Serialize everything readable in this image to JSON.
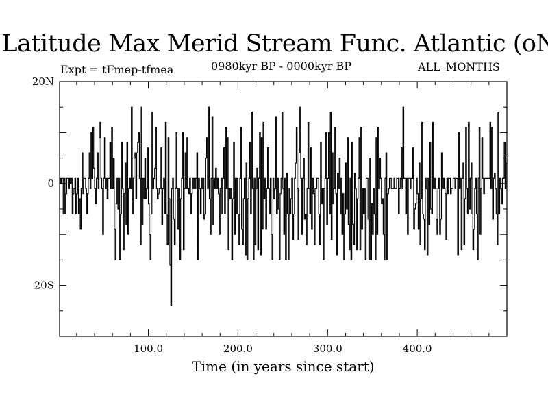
{
  "chart_data": {
    "type": "line",
    "title": "Latitude Max Merid Stream Func. Atlantic (oN)",
    "subtitle_left": "Expt = tFmep-tfmea",
    "subtitle_center": "0980kyr BP - 0000kyr BP",
    "subtitle_right": "ALL_MONTHS",
    "xlabel": "Time (in years since start)",
    "ylabel": "",
    "xlim": [
      1,
      500
    ],
    "ylim": [
      -30,
      20
    ],
    "x_ticks": [
      {
        "value": 100,
        "label": "100.0"
      },
      {
        "value": 200,
        "label": "200.0"
      },
      {
        "value": 300,
        "label": "300.0"
      },
      {
        "value": 400,
        "label": "400.0"
      }
    ],
    "y_ticks": [
      {
        "value": 20,
        "label": "20N"
      },
      {
        "value": 0,
        "label": "0"
      },
      {
        "value": -20,
        "label": "20S"
      }
    ],
    "series": [
      {
        "values": [
          1,
          0,
          1,
          1,
          -6,
          1,
          -6,
          -2,
          1,
          1,
          -1,
          1,
          0,
          1,
          -6,
          -2,
          -1,
          1,
          -6,
          -2,
          1,
          -6,
          -3,
          -9,
          -1,
          6,
          -2,
          1,
          1,
          -1,
          -6,
          -2,
          1,
          6,
          -1,
          10,
          1,
          11,
          3,
          -1,
          -4,
          1,
          6,
          -1,
          9,
          12,
          1,
          -1,
          -10,
          1,
          9,
          -1,
          1,
          -3,
          1,
          1,
          8,
          -1,
          11,
          -1,
          5,
          -9,
          -15,
          -4,
          1,
          -5,
          1,
          -15,
          -6,
          8,
          -1,
          -13,
          -2,
          4,
          -8,
          8,
          -10,
          -1,
          1,
          -1,
          15,
          -6,
          1,
          5,
          6,
          -3,
          6,
          8,
          10,
          1,
          -12,
          15,
          -8,
          1,
          -3,
          5,
          -3,
          -1,
          7,
          -4,
          -10,
          -15,
          -6,
          14,
          -1,
          1,
          3,
          11,
          -1,
          -3,
          -2,
          -1,
          -1,
          7,
          -8,
          -1,
          1,
          -6,
          12,
          -6,
          -12,
          9,
          -3,
          -16,
          -24,
          -1,
          1,
          -7,
          -12,
          -1,
          10,
          -1,
          -9,
          -1,
          -15,
          -3,
          1,
          10,
          -13,
          -1,
          6,
          -1,
          9,
          -1,
          -2,
          1,
          -6,
          -2,
          1,
          -1,
          1,
          -1,
          1,
          6,
          -15,
          1,
          -1,
          -6,
          1,
          -1,
          1,
          -7,
          -6,
          5,
          9,
          -1,
          15,
          -3,
          -10,
          1,
          13,
          -8,
          1,
          -1,
          3,
          -1,
          1,
          -2,
          -10,
          -1,
          1,
          -6,
          1,
          7,
          -6,
          11,
          -1,
          9,
          -13,
          -1,
          -3,
          -1,
          -15,
          -3,
          8,
          -10,
          1,
          -6,
          1,
          -6,
          -12,
          1,
          11,
          -9,
          -12,
          -3,
          1,
          -14,
          4,
          -15,
          -3,
          1,
          8,
          -6,
          14,
          -1,
          -15,
          1,
          -12,
          -1,
          3,
          -13,
          1,
          10,
          -14,
          9,
          -9,
          12,
          -3,
          1,
          -9,
          -1,
          7,
          -1,
          -6,
          1,
          -10,
          -15,
          1,
          -3,
          -1,
          13,
          -6,
          1,
          -5,
          -15,
          -2,
          1,
          14,
          -1,
          -10,
          1,
          -15,
          2,
          -6,
          -15,
          -1,
          -6,
          -3,
          1,
          -11,
          -6,
          1,
          4,
          11,
          -1,
          -11,
          6,
          15,
          1,
          -10,
          1,
          5,
          -7,
          -6,
          -12,
          -1,
          12,
          -1,
          -6,
          7,
          -9,
          1,
          -2,
          -12,
          -1,
          -1,
          1,
          1,
          -6,
          -12,
          8,
          -4,
          -1,
          -15,
          -1,
          1,
          10,
          -8,
          1,
          10,
          -6,
          14,
          -11,
          6,
          -4,
          -1,
          11,
          -2,
          -14,
          2,
          -1,
          5,
          -6,
          1,
          -10,
          -2,
          -15,
          -6,
          4,
          -5,
          9,
          -8,
          -13,
          1,
          -15,
          8,
          -8,
          -12,
          2,
          -1,
          -13,
          -3,
          1,
          9,
          -13,
          11,
          -9,
          -1,
          -6,
          -1,
          -15,
          1,
          1,
          -7,
          -15,
          5,
          -15,
          -4,
          -10,
          -1,
          -6,
          -15,
          9,
          -10,
          11,
          -1,
          5,
          1,
          -4,
          -3,
          -10,
          -15,
          1,
          6,
          -15,
          -2,
          -1,
          1,
          1,
          -1,
          -1,
          -1,
          1,
          -1,
          -1,
          1,
          1,
          -6,
          -1,
          1,
          7,
          -1,
          15,
          1,
          1,
          -6,
          1,
          -10,
          1,
          1,
          -1,
          1,
          1,
          7,
          -9,
          -5,
          -4,
          1,
          -2,
          -9,
          4,
          -12,
          -3,
          12,
          -6,
          -7,
          -13,
          1,
          -1,
          -14,
          1,
          -8,
          8,
          -5,
          -6,
          12,
          -1,
          1,
          -1,
          -7,
          -10,
          -1,
          1,
          -10,
          -7,
          6,
          -1,
          1,
          -1,
          -2,
          -11,
          1,
          -2,
          1,
          1,
          -2,
          -1,
          -1,
          1,
          1,
          -1,
          1,
          1,
          -14,
          10,
          -1,
          1,
          -13,
          1,
          4,
          -12,
          -3,
          11,
          -1,
          -6,
          12,
          -5,
          1,
          4,
          -6,
          -13,
          -9,
          -1,
          1,
          -6,
          -15,
          1,
          11,
          -10,
          -1,
          9,
          1,
          -2,
          1,
          1,
          1,
          1,
          1,
          1,
          12,
          -1,
          11,
          -7,
          1,
          2,
          -1,
          -6,
          -12,
          14,
          -6,
          1,
          -1,
          -4,
          1,
          1,
          8,
          -1,
          4
        ]
      }
    ]
  }
}
